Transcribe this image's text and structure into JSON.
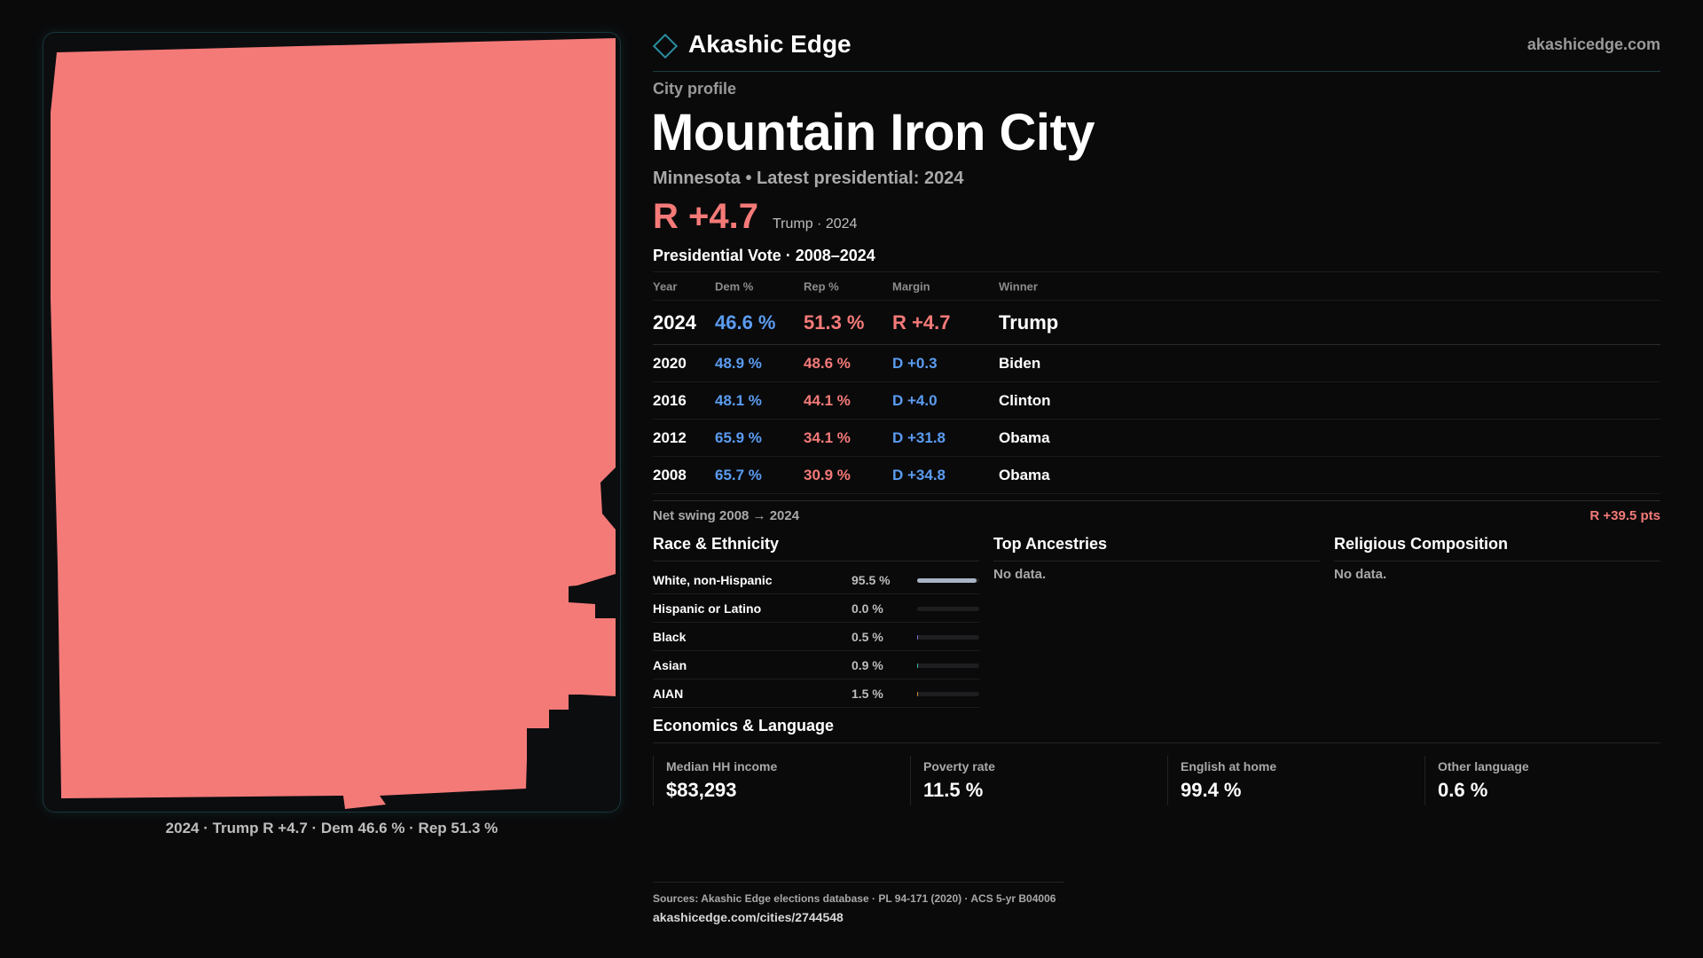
{
  "brand": {
    "name": "Akashic Edge",
    "site": "akashicedge.com",
    "logo_icon": "diamond-icon"
  },
  "profile": {
    "kicker": "City profile",
    "city": "Mountain Iron City",
    "subline": "Minnesota • Latest presidential: 2024",
    "lean": "R +4.7",
    "lean_note": "Trump · 2024"
  },
  "map": {
    "fill_color": "#f47a78",
    "caption": "2024 · Trump R +4.7 · Dem 46.6 % · Rep 51.3 %"
  },
  "vote": {
    "heading": "Presidential Vote · 2008–2024",
    "columns": {
      "year": "Year",
      "dem": "Dem %",
      "rep": "Rep %",
      "margin": "Margin",
      "winner": "Winner"
    },
    "rows": [
      {
        "year": "2024",
        "dem": "46.6 %",
        "rep": "51.3 %",
        "margin": "R +4.7",
        "party": "R",
        "winner": "Trump"
      },
      {
        "year": "2020",
        "dem": "48.9 %",
        "rep": "48.6 %",
        "margin": "D +0.3",
        "party": "D",
        "winner": "Biden"
      },
      {
        "year": "2016",
        "dem": "48.1 %",
        "rep": "44.1 %",
        "margin": "D +4.0",
        "party": "D",
        "winner": "Clinton"
      },
      {
        "year": "2012",
        "dem": "65.9 %",
        "rep": "34.1 %",
        "margin": "D +31.8",
        "party": "D",
        "winner": "Obama"
      },
      {
        "year": "2008",
        "dem": "65.7 %",
        "rep": "30.9 %",
        "margin": "D +34.8",
        "party": "D",
        "winner": "Obama"
      }
    ],
    "swing_label": "Net swing 2008 → 2024",
    "swing_value": "R +39.5 pts"
  },
  "race": {
    "title": "Race & Ethnicity",
    "rows": [
      {
        "label": "White, non-Hispanic",
        "pct": "95.5 %",
        "share": 95.5,
        "color": "#a9b4c4"
      },
      {
        "label": "Hispanic or Latino",
        "pct": "0.0 %",
        "share": 0.0,
        "color": "#c98a4a"
      },
      {
        "label": "Black",
        "pct": "0.5 %",
        "share": 0.5,
        "color": "#8a6bd1"
      },
      {
        "label": "Asian",
        "pct": "0.9 %",
        "share": 0.9,
        "color": "#3fb6a8"
      },
      {
        "label": "AIAN",
        "pct": "1.5 %",
        "share": 1.5,
        "color": "#d1893a"
      }
    ]
  },
  "ancestries": {
    "title": "Top Ancestries",
    "empty": "No data."
  },
  "religion": {
    "title": "Religious Composition",
    "empty": "No data."
  },
  "economics": {
    "title": "Economics & Language",
    "items": [
      {
        "label": "Median HH income",
        "value": "$83,293"
      },
      {
        "label": "Poverty rate",
        "value": "11.5 %"
      },
      {
        "label": "English at home",
        "value": "99.4 %"
      },
      {
        "label": "Other language",
        "value": "0.6 %"
      }
    ]
  },
  "footer": {
    "sources": "Sources: Akashic Edge elections database · PL 94-171 (2020) · ACS 5-yr B04006",
    "url": "akashicedge.com/cities/2744548"
  }
}
